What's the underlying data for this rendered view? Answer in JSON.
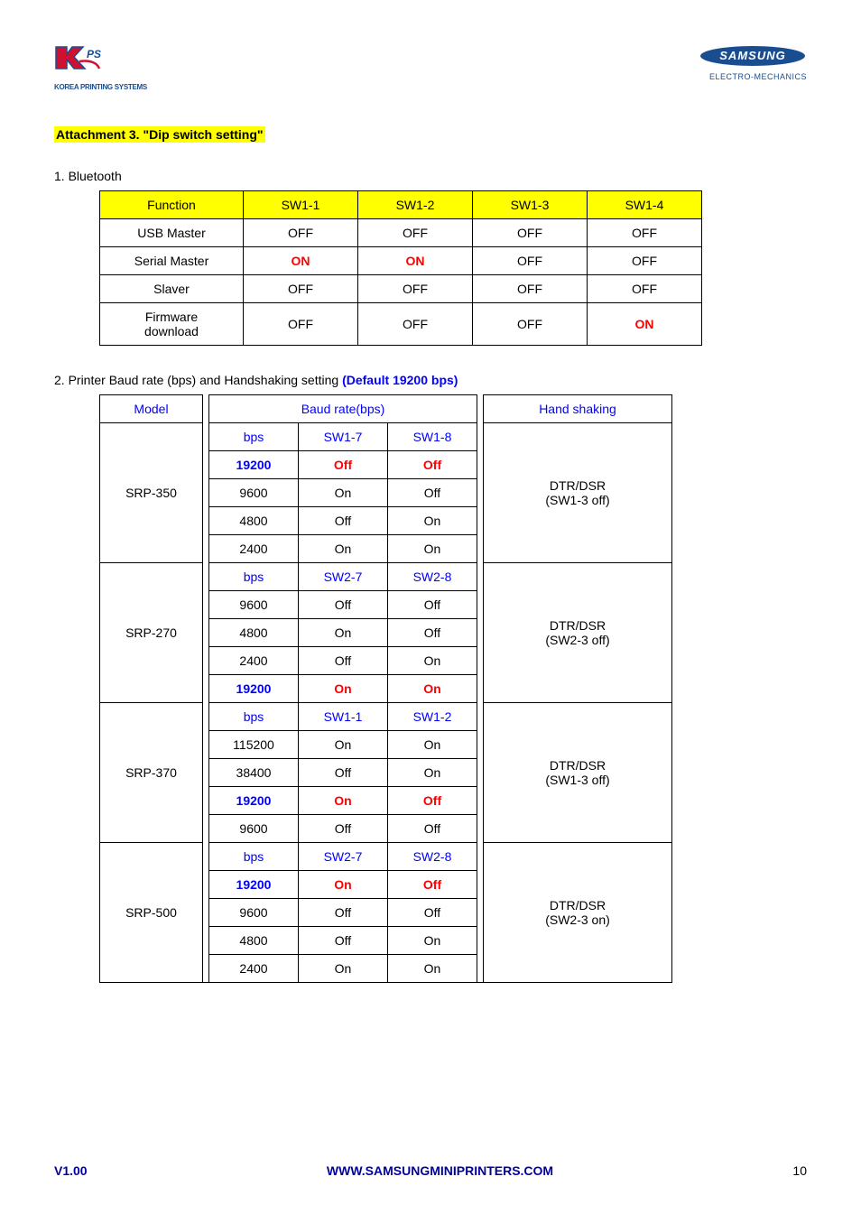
{
  "logos": {
    "kps_sub": "KOREA PRINTING SYSTEMS",
    "samsung": "SAMSUNG",
    "samsung_sub": "ELECTRO-MECHANICS"
  },
  "attachment_title": "Attachment 3. \"Dip switch setting\"",
  "section1": {
    "heading": "1. Bluetooth",
    "headers": [
      "Function",
      "SW1-1",
      "SW1-2",
      "SW1-3",
      "SW1-4"
    ],
    "rows": [
      {
        "cells": [
          "USB Master",
          "OFF",
          "OFF",
          "OFF",
          "OFF"
        ],
        "red": []
      },
      {
        "cells": [
          "Serial Master",
          "ON",
          "ON",
          "OFF",
          "OFF"
        ],
        "red": [
          1,
          2
        ]
      },
      {
        "cells": [
          "Slaver",
          "OFF",
          "OFF",
          "OFF",
          "OFF"
        ],
        "red": []
      },
      {
        "cells": [
          "Firmware download",
          "OFF",
          "OFF",
          "OFF",
          "ON"
        ],
        "red": [
          4
        ]
      }
    ]
  },
  "section2": {
    "heading_prefix": "2. Printer Baud rate (bps) and Handshaking setting ",
    "heading_default": "(Default 19200 bps)",
    "headers": {
      "model": "Model",
      "baud": "Baud rate(bps)",
      "hand": "Hand shaking"
    },
    "groups": [
      {
        "model": "SRP-350",
        "sub_headers": [
          "bps",
          "SW1-7",
          "SW1-8"
        ],
        "rows": [
          {
            "c": [
              "19200",
              "Off",
              "Off"
            ],
            "hl": true
          },
          {
            "c": [
              "9600",
              "On",
              "Off"
            ]
          },
          {
            "c": [
              "4800",
              "Off",
              "On"
            ]
          },
          {
            "c": [
              "2400",
              "On",
              "On"
            ]
          }
        ],
        "hand": "DTR/DSR\n(SW1-3 off)"
      },
      {
        "model": "SRP-270",
        "sub_headers": [
          "bps",
          "SW2-7",
          "SW2-8"
        ],
        "rows": [
          {
            "c": [
              "9600",
              "Off",
              "Off"
            ]
          },
          {
            "c": [
              "4800",
              "On",
              "Off"
            ]
          },
          {
            "c": [
              "2400",
              "Off",
              "On"
            ]
          },
          {
            "c": [
              "19200",
              "On",
              "On"
            ],
            "hl": true
          }
        ],
        "hand": "DTR/DSR\n(SW2-3 off)"
      },
      {
        "model": "SRP-370",
        "sub_headers": [
          "bps",
          "SW1-1",
          "SW1-2"
        ],
        "rows": [
          {
            "c": [
              "115200",
              "On",
              "On"
            ]
          },
          {
            "c": [
              "38400",
              "Off",
              "On"
            ]
          },
          {
            "c": [
              "19200",
              "On",
              "Off"
            ],
            "hl": true
          },
          {
            "c": [
              "9600",
              "Off",
              "Off"
            ]
          }
        ],
        "hand": "DTR/DSR\n(SW1-3 off)"
      },
      {
        "model": "SRP-500",
        "sub_headers": [
          "bps",
          "SW2-7",
          "SW2-8"
        ],
        "rows": [
          {
            "c": [
              "19200",
              "On",
              "Off"
            ],
            "hl": true
          },
          {
            "c": [
              "9600",
              "Off",
              "Off"
            ]
          },
          {
            "c": [
              "4800",
              "Off",
              "On"
            ]
          },
          {
            "c": [
              "2400",
              "On",
              "On"
            ]
          }
        ],
        "hand": "DTR/DSR\n(SW2-3 on)"
      }
    ]
  },
  "footer": {
    "version": "V1.00",
    "url": "WWW.SAMSUNGMINIPRINTERS.COM",
    "page": "10"
  },
  "colors": {
    "highlight": "#ffff00",
    "red": "#ff0000",
    "blue": "#0000ff",
    "navy": "#0000a0",
    "border": "#000000"
  }
}
